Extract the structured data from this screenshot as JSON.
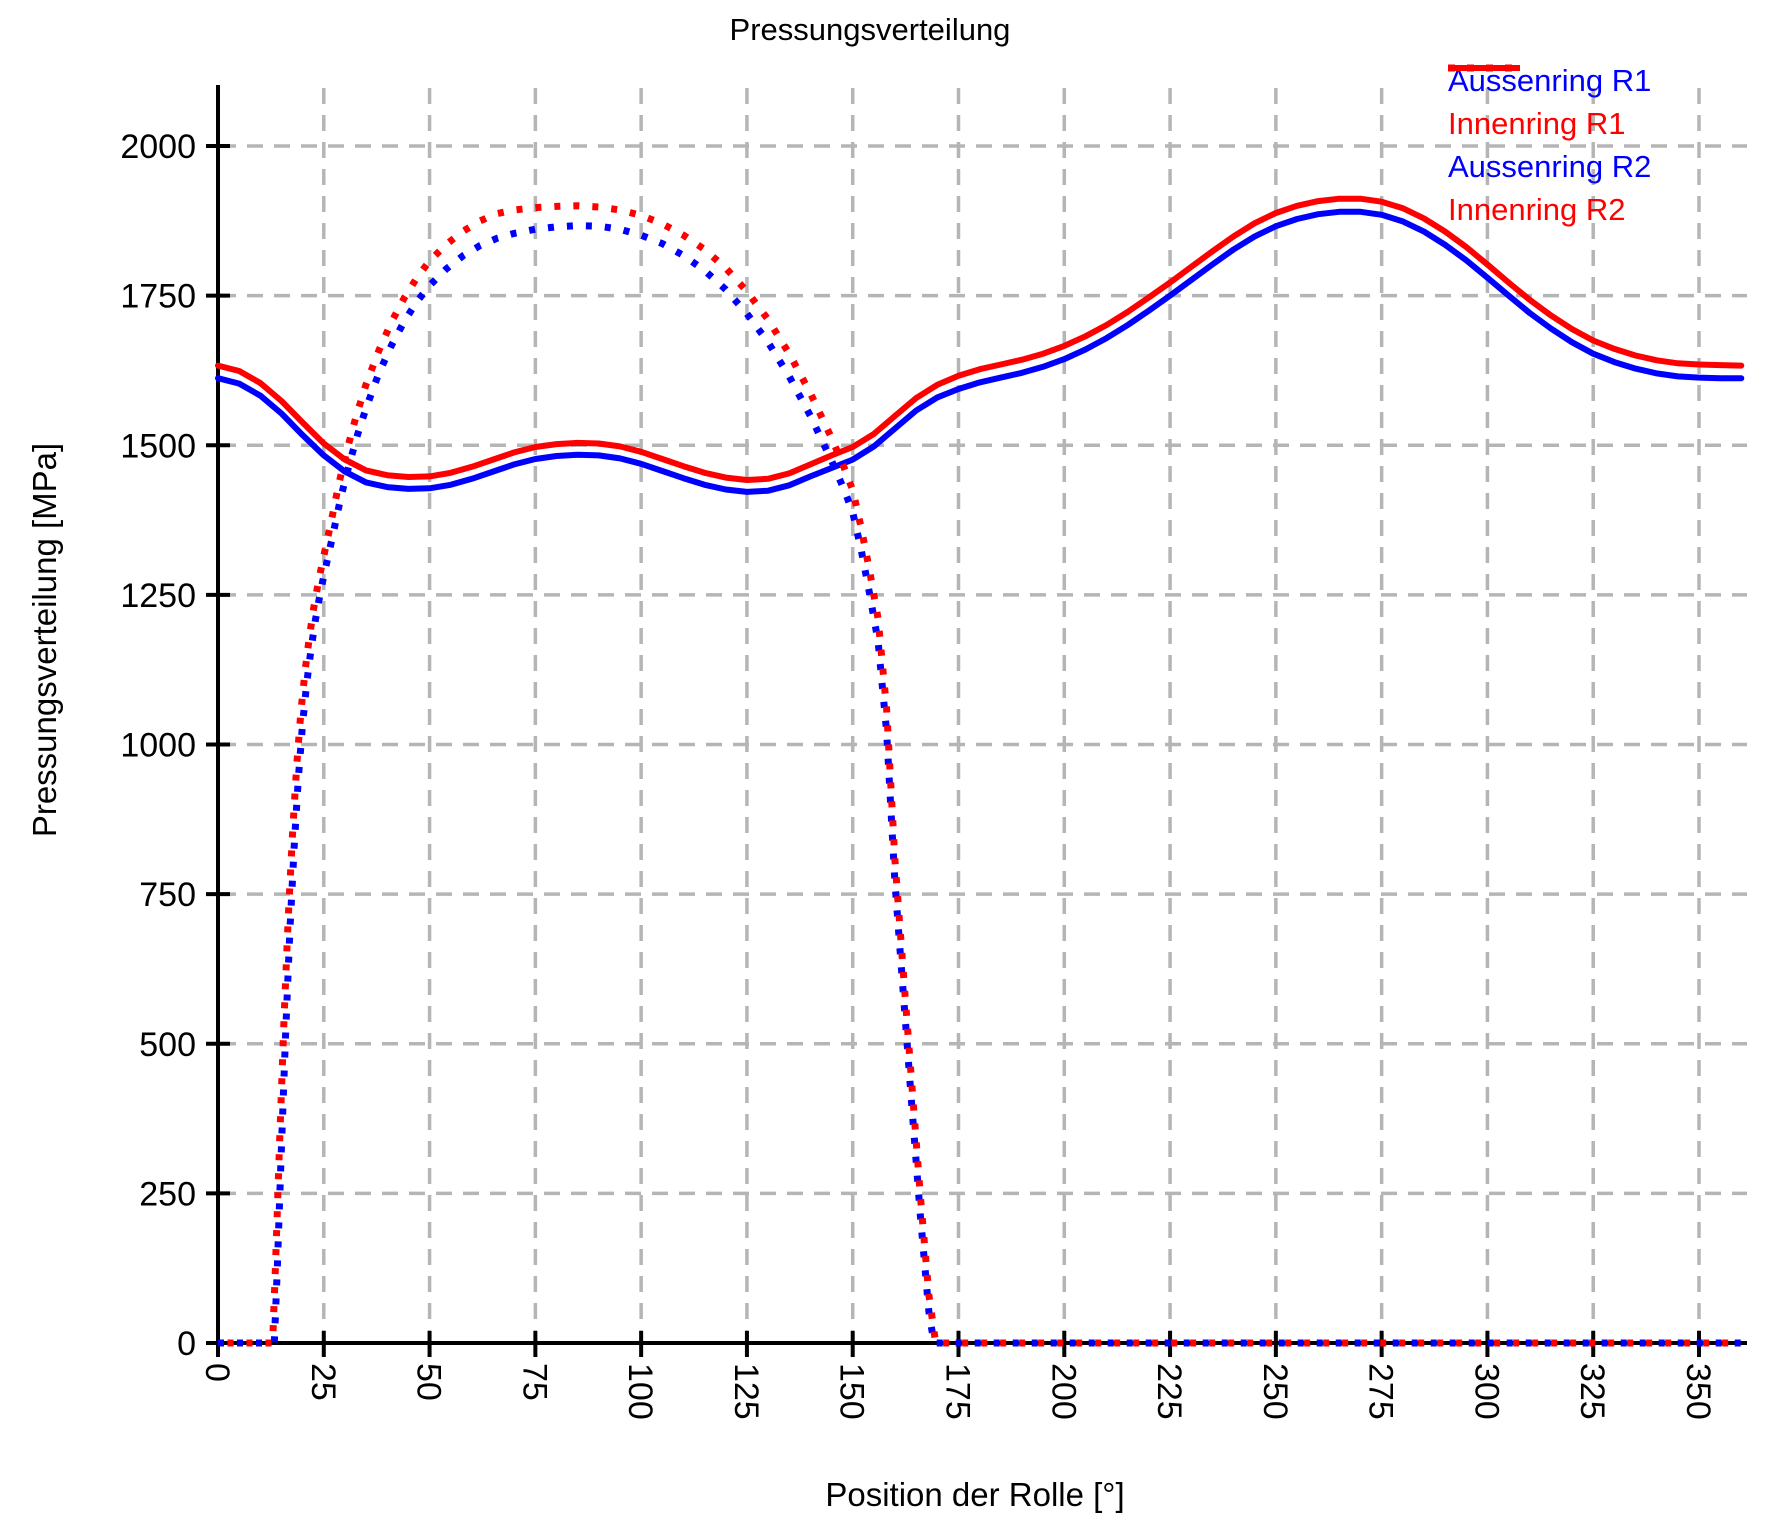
{
  "title": "Pressungsverteilung",
  "axes": {
    "x": {
      "label": "Position der Rolle [°]",
      "min": 0,
      "max": 360,
      "tick_step": 25,
      "ticks": [
        0,
        25,
        50,
        75,
        100,
        125,
        150,
        175,
        200,
        225,
        250,
        275,
        300,
        325,
        350
      ],
      "tick_label_rotation_deg": 90
    },
    "y": {
      "label": "Pressungsverteilung [MPa]",
      "min": 0,
      "max": 2100,
      "tick_step": 250,
      "ticks": [
        0,
        250,
        500,
        750,
        1000,
        1250,
        1500,
        1750,
        2000
      ]
    }
  },
  "colors": {
    "blue": "#0000ff",
    "red": "#ff0000",
    "grid": "#b5b5b5",
    "axis": "#000000",
    "text": "#000000",
    "background": "#ffffff"
  },
  "legend": {
    "position": "top-right",
    "items": [
      {
        "label": "Aussenring R1",
        "color": "#0000ff",
        "style": "solid"
      },
      {
        "label": "Innenring R1",
        "color": "#ff0000",
        "style": "solid"
      },
      {
        "label": "Aussenring R2",
        "color": "#0000ff",
        "style": "dotted"
      },
      {
        "label": "Innenring R2",
        "color": "#ff0000",
        "style": "dotted"
      }
    ]
  },
  "chart_data": {
    "type": "line",
    "title": "Pressungsverteilung",
    "xlabel": "Position der Rolle [°]",
    "ylabel": "Pressungsverteilung [MPa]",
    "xlim": [
      0,
      360
    ],
    "ylim": [
      0,
      2100
    ],
    "grid": true,
    "legend_position": "top-right",
    "series": [
      {
        "name": "Aussenring R1",
        "color": "#0000ff",
        "line_style": "solid",
        "x": [
          0,
          5,
          10,
          15,
          20,
          25,
          30,
          35,
          40,
          45,
          50,
          55,
          60,
          65,
          70,
          75,
          80,
          85,
          90,
          95,
          100,
          105,
          110,
          115,
          120,
          125,
          130,
          135,
          140,
          145,
          150,
          155,
          160,
          165,
          170,
          175,
          180,
          185,
          190,
          195,
          200,
          205,
          210,
          215,
          220,
          225,
          230,
          235,
          240,
          245,
          250,
          255,
          260,
          265,
          270,
          275,
          280,
          285,
          290,
          295,
          300,
          305,
          310,
          315,
          320,
          325,
          330,
          335,
          340,
          345,
          350,
          355,
          360
        ],
        "y": [
          1612,
          1603,
          1583,
          1553,
          1517,
          1483,
          1456,
          1438,
          1430,
          1427,
          1428,
          1434,
          1444,
          1456,
          1468,
          1477,
          1482,
          1484,
          1483,
          1478,
          1469,
          1457,
          1445,
          1434,
          1426,
          1422,
          1424,
          1433,
          1448,
          1462,
          1476,
          1498,
          1528,
          1558,
          1580,
          1594,
          1605,
          1613,
          1621,
          1631,
          1644,
          1660,
          1679,
          1701,
          1725,
          1750,
          1776,
          1802,
          1827,
          1849,
          1866,
          1878,
          1886,
          1890,
          1890,
          1885,
          1874,
          1857,
          1835,
          1809,
          1780,
          1750,
          1721,
          1695,
          1672,
          1653,
          1639,
          1628,
          1620,
          1615,
          1613,
          1612,
          1612
        ]
      },
      {
        "name": "Innenring R1",
        "color": "#ff0000",
        "line_style": "solid",
        "x": [
          0,
          5,
          10,
          15,
          20,
          25,
          30,
          35,
          40,
          45,
          50,
          55,
          60,
          65,
          70,
          75,
          80,
          85,
          90,
          95,
          100,
          105,
          110,
          115,
          120,
          125,
          130,
          135,
          140,
          145,
          150,
          155,
          160,
          165,
          170,
          175,
          180,
          185,
          190,
          195,
          200,
          205,
          210,
          215,
          220,
          225,
          230,
          235,
          240,
          245,
          250,
          255,
          260,
          265,
          270,
          275,
          280,
          285,
          290,
          295,
          300,
          305,
          310,
          315,
          320,
          325,
          330,
          335,
          340,
          345,
          350,
          355,
          360
        ],
        "y": [
          1633,
          1624,
          1604,
          1574,
          1538,
          1503,
          1476,
          1458,
          1450,
          1447,
          1448,
          1454,
          1464,
          1476,
          1488,
          1497,
          1502,
          1504,
          1503,
          1498,
          1489,
          1477,
          1465,
          1454,
          1446,
          1442,
          1444,
          1453,
          1468,
          1483,
          1497,
          1519,
          1549,
          1579,
          1601,
          1616,
          1627,
          1635,
          1643,
          1653,
          1666,
          1682,
          1701,
          1723,
          1747,
          1772,
          1798,
          1824,
          1849,
          1871,
          1888,
          1900,
          1908,
          1912,
          1912,
          1907,
          1896,
          1879,
          1857,
          1831,
          1802,
          1772,
          1743,
          1717,
          1694,
          1675,
          1661,
          1650,
          1642,
          1637,
          1635,
          1634,
          1633
        ]
      },
      {
        "name": "Aussenring R2",
        "color": "#0000ff",
        "line_style": "dotted",
        "x": [
          0,
          5,
          10,
          13.3,
          14,
          15,
          16,
          17,
          18,
          19,
          20,
          21,
          22,
          23,
          24,
          25,
          27,
          29,
          31,
          33,
          35,
          38,
          41,
          44,
          47,
          50,
          54,
          58,
          62,
          66,
          70,
          75,
          80,
          85,
          90,
          95,
          100,
          105,
          110,
          115,
          120,
          125,
          130,
          135,
          140,
          145,
          148,
          150,
          152,
          154,
          156,
          158,
          160,
          162,
          164,
          166,
          168,
          169.2,
          172,
          180,
          190,
          200,
          210,
          220,
          230,
          240,
          250,
          260,
          270,
          280,
          290,
          300,
          310,
          320,
          330,
          340,
          350,
          360
        ],
        "y": [
          0,
          0,
          0,
          0,
          120,
          330,
          520,
          690,
          830,
          945,
          1035,
          1105,
          1160,
          1207,
          1247,
          1282,
          1345,
          1412,
          1468,
          1518,
          1562,
          1620,
          1667,
          1707,
          1740,
          1767,
          1795,
          1817,
          1834,
          1846,
          1854,
          1861,
          1865,
          1867,
          1866,
          1861,
          1851,
          1837,
          1817,
          1792,
          1760,
          1720,
          1672,
          1615,
          1549,
          1474,
          1425,
          1388,
          1325,
          1252,
          1172,
          1022,
          768,
          580,
          392,
          212,
          52,
          0,
          0,
          0,
          0,
          0,
          0,
          0,
          0,
          0,
          0,
          0,
          0,
          0,
          0,
          0,
          0,
          0,
          0,
          0,
          0,
          0
        ]
      },
      {
        "name": "Innenring R2",
        "color": "#ff0000",
        "line_style": "dotted",
        "x": [
          0,
          5,
          10,
          12.9,
          13.6,
          14.6,
          15.6,
          16.6,
          17.6,
          18.6,
          19.6,
          20.6,
          21.6,
          22.6,
          23.6,
          24.6,
          26.6,
          28.6,
          30.6,
          32.6,
          35,
          38,
          41,
          44,
          47,
          50,
          54,
          58,
          62,
          66,
          70,
          75,
          80,
          85,
          90,
          95,
          100,
          105,
          110,
          115,
          120,
          125,
          130,
          135,
          140,
          145,
          148,
          150,
          152,
          154,
          156,
          158,
          160,
          162,
          164,
          166,
          168,
          169.6,
          172,
          180,
          190,
          200,
          210,
          220,
          230,
          240,
          250,
          260,
          270,
          280,
          290,
          300,
          310,
          320,
          330,
          340,
          350,
          360
        ],
        "y": [
          0,
          0,
          0,
          0,
          130,
          345,
          540,
          710,
          850,
          965,
          1055,
          1125,
          1180,
          1227,
          1267,
          1302,
          1368,
          1437,
          1495,
          1547,
          1602,
          1658,
          1706,
          1746,
          1780,
          1808,
          1836,
          1858,
          1875,
          1887,
          1893,
          1897,
          1899,
          1900,
          1898,
          1893,
          1884,
          1870,
          1851,
          1827,
          1796,
          1757,
          1710,
          1653,
          1587,
          1512,
          1462,
          1425,
          1362,
          1290,
          1210,
          1060,
          805,
          615,
          428,
          245,
          80,
          0,
          0,
          0,
          0,
          0,
          0,
          0,
          0,
          0,
          0,
          0,
          0,
          0,
          0,
          0,
          0,
          0,
          0,
          0,
          0,
          0
        ]
      }
    ]
  }
}
